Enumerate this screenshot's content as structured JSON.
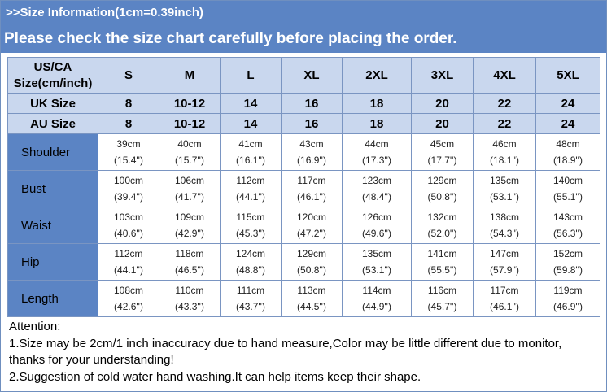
{
  "banner": {
    "info": ">>Size Information(1cm=0.39inch)",
    "notice": "Please check the size chart carefully before placing the order."
  },
  "table": {
    "corner_line1": "US/CA",
    "corner_line2": "Size(cm/inch)",
    "us_sizes": [
      "S",
      "M",
      "L",
      "XL",
      "2XL",
      "3XL",
      "4XL",
      "5XL"
    ],
    "uk_label": "UK Size",
    "uk_sizes": [
      "8",
      "10-12",
      "14",
      "16",
      "18",
      "20",
      "22",
      "24"
    ],
    "au_label": "AU Size",
    "au_sizes": [
      "8",
      "10-12",
      "14",
      "16",
      "18",
      "20",
      "22",
      "24"
    ],
    "rows": [
      {
        "label": "Shoulder",
        "cm": [
          "39cm",
          "40cm",
          "41cm",
          "43cm",
          "44cm",
          "45cm",
          "46cm",
          "48cm"
        ],
        "inch": [
          "(15.4'')",
          "(15.7'')",
          "(16.1'')",
          "(16.9'')",
          "(17.3'')",
          "(17.7'')",
          "(18.1'')",
          "(18.9'')"
        ]
      },
      {
        "label": "Bust",
        "cm": [
          "100cm",
          "106cm",
          "112cm",
          "117cm",
          "123cm",
          "129cm",
          "135cm",
          "140cm"
        ],
        "inch": [
          "(39.4'')",
          "(41.7'')",
          "(44.1'')",
          "(46.1'')",
          "(48.4'')",
          "(50.8'')",
          "(53.1'')",
          "(55.1'')"
        ]
      },
      {
        "label": "Waist",
        "cm": [
          "103cm",
          "109cm",
          "115cm",
          "120cm",
          "126cm",
          "132cm",
          "138cm",
          "143cm"
        ],
        "inch": [
          "(40.6'')",
          "(42.9'')",
          "(45.3'')",
          "(47.2'')",
          "(49.6'')",
          "(52.0'')",
          "(54.3'')",
          "(56.3'')"
        ]
      },
      {
        "label": "Hip",
        "cm": [
          "112cm",
          "118cm",
          "124cm",
          "129cm",
          "135cm",
          "141cm",
          "147cm",
          "152cm"
        ],
        "inch": [
          "(44.1'')",
          "(46.5'')",
          "(48.8'')",
          "(50.8'')",
          "(53.1'')",
          "(55.5'')",
          "(57.9'')",
          "(59.8'')"
        ]
      },
      {
        "label": "Length",
        "cm": [
          "108cm",
          "110cm",
          "111cm",
          "113cm",
          "114cm",
          "116cm",
          "117cm",
          "119cm"
        ],
        "inch": [
          "(42.6'')",
          "(43.3'')",
          "(43.7'')",
          "(44.5'')",
          "(44.9'')",
          "(45.7'')",
          "(46.1'')",
          "(46.9'')"
        ]
      }
    ]
  },
  "attention": {
    "title": "Attention:",
    "note1": "1.Size may be 2cm/1 inch inaccuracy due to hand measure,Color may be little different due to monitor,",
    "note1_cont": "thanks for your understanding!",
    "note2": "2.Suggestion of cold water hand washing.It can help items keep their shape."
  },
  "colors": {
    "header_blue": "#5b84c4",
    "light_blue": "#c9d7ee",
    "grid": "#7a95c2"
  }
}
